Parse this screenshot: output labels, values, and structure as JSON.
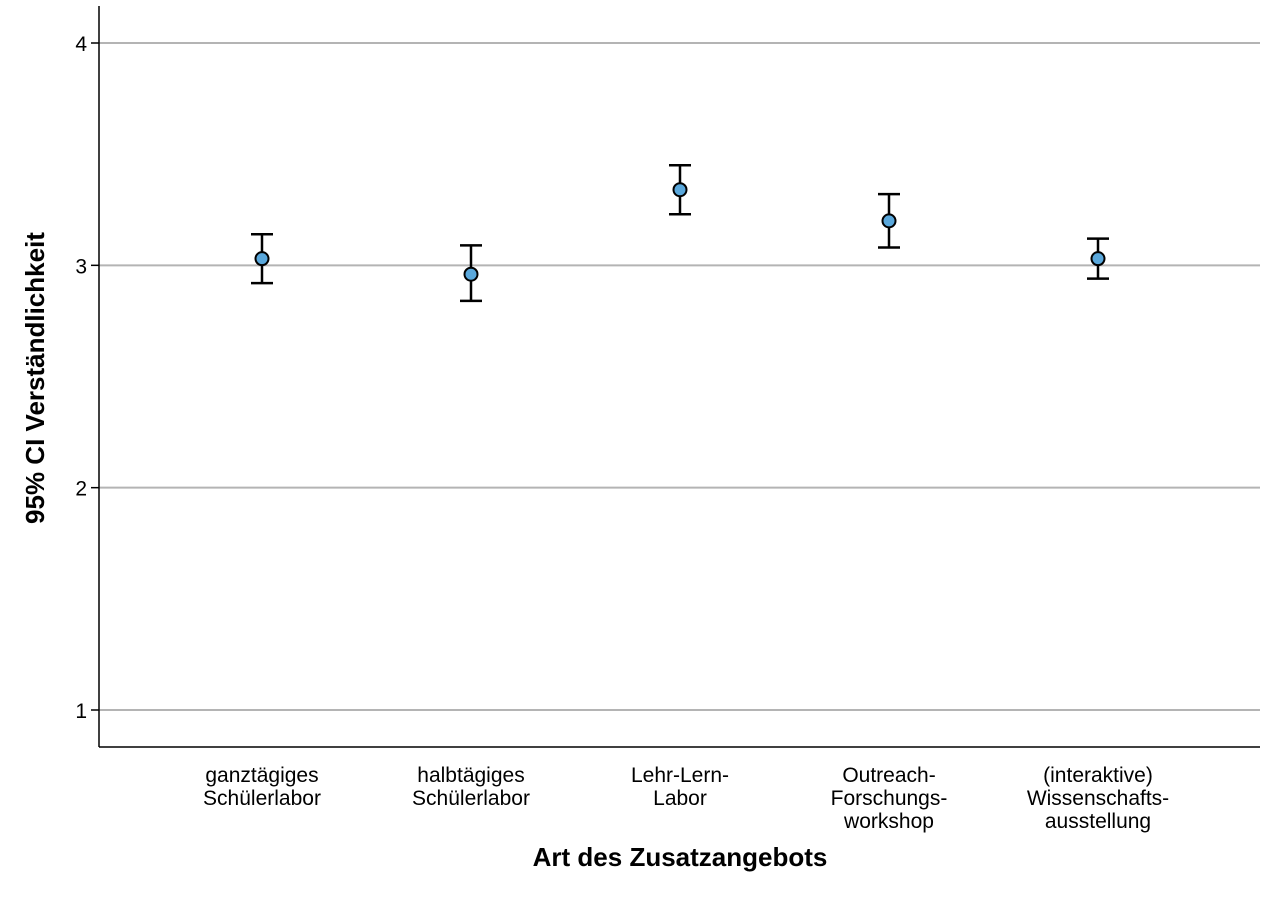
{
  "chart_data": {
    "type": "errorbar",
    "title": "",
    "xlabel": "Art des Zusatzangebots",
    "ylabel": "95% CI Verständlichkeit",
    "ylim": [
      0.85,
      4.15
    ],
    "yticks": [
      1,
      2,
      3,
      4
    ],
    "grid": true,
    "categories": [
      [
        "ganztägiges",
        "Schülerlabor"
      ],
      [
        "halbtägiges",
        "Schülerlabor"
      ],
      [
        "Lehr-Lern-",
        "Labor"
      ],
      [
        "Outreach-",
        "Forschungs-",
        "workshop"
      ],
      [
        "(interaktive)",
        "Wissenschafts-",
        "ausstellung"
      ]
    ],
    "series": [
      {
        "mean": [
          3.03,
          2.96,
          3.34,
          3.2,
          3.03
        ],
        "lower": [
          2.92,
          2.84,
          3.23,
          3.08,
          2.94
        ],
        "upper": [
          3.14,
          3.09,
          3.45,
          3.32,
          3.12
        ]
      }
    ],
    "marker_color": "#5aa8dc"
  }
}
